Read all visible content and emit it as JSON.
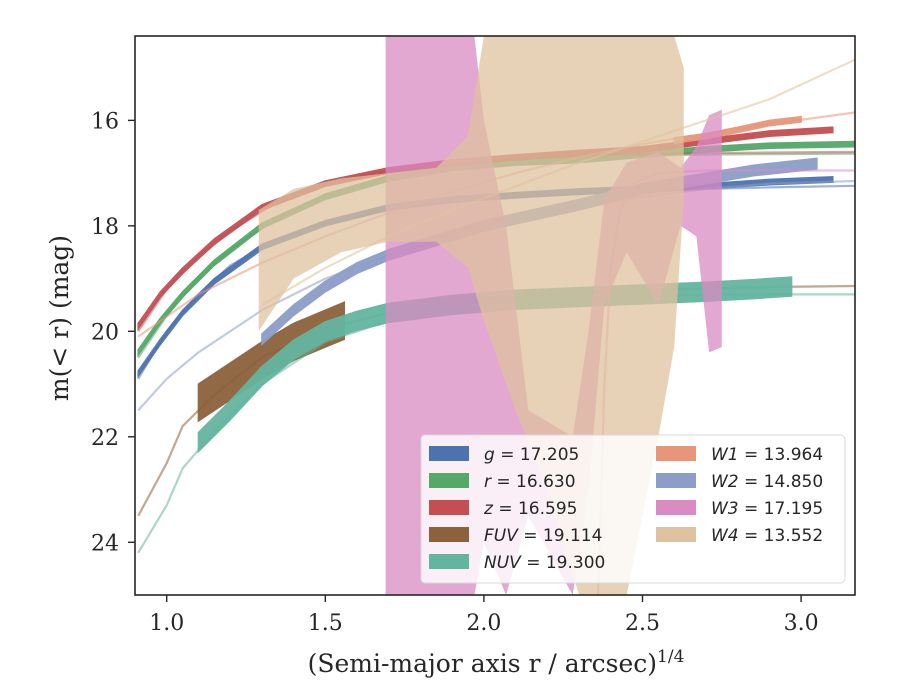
{
  "chart_data": {
    "type": "line",
    "title": "",
    "xlabel": "(Semi-major axis r / arcsec)",
    "xlabel_superscript": "1/4",
    "ylabel": "m(< r) (mag)",
    "xlim": [
      0.9,
      3.17
    ],
    "ylim": [
      25.0,
      14.4
    ],
    "y_inverted": true,
    "xticks": [
      1.0,
      1.5,
      2.0,
      2.5,
      3.0
    ],
    "xtick_labels": [
      "1.0",
      "1.5",
      "2.0",
      "2.5",
      "3.0"
    ],
    "yticks": [
      16,
      18,
      20,
      22,
      24
    ],
    "ytick_labels": [
      "16",
      "18",
      "20",
      "22",
      "24"
    ],
    "grid": false,
    "legend": {
      "placement": "lower-right",
      "columns": 2
    },
    "series": [
      {
        "name": "g = 17.205",
        "var": "g",
        "value": "17.205",
        "color": "#4c72b0",
        "data": [
          [
            0.91,
            20.8
          ],
          [
            0.98,
            20.2
          ],
          [
            1.05,
            19.65
          ],
          [
            1.15,
            19.05
          ],
          [
            1.3,
            18.4
          ],
          [
            1.5,
            17.95
          ],
          [
            1.7,
            17.65
          ],
          [
            1.9,
            17.5
          ],
          [
            2.1,
            17.42
          ],
          [
            2.3,
            17.35
          ],
          [
            2.5,
            17.3
          ],
          [
            2.7,
            17.25
          ],
          [
            2.9,
            17.17
          ],
          [
            3.1,
            17.12
          ]
        ],
        "halfwidth": 0.05,
        "model": [
          [
            0.91,
            20.9
          ],
          [
            1.0,
            20.0
          ],
          [
            1.1,
            19.3
          ],
          [
            1.2,
            18.75
          ],
          [
            1.35,
            18.25
          ],
          [
            1.5,
            17.95
          ],
          [
            1.7,
            17.7
          ],
          [
            1.9,
            17.55
          ],
          [
            2.1,
            17.45
          ],
          [
            2.3,
            17.4
          ],
          [
            2.5,
            17.35
          ],
          [
            2.7,
            17.3
          ],
          [
            2.9,
            17.27
          ],
          [
            3.17,
            17.24
          ]
        ]
      },
      {
        "name": "r = 16.630",
        "var": "r",
        "value": "16.630",
        "color": "#55a868",
        "data": [
          [
            0.91,
            20.4
          ],
          [
            0.98,
            19.8
          ],
          [
            1.05,
            19.3
          ],
          [
            1.15,
            18.7
          ],
          [
            1.3,
            18.0
          ],
          [
            1.5,
            17.45
          ],
          [
            1.7,
            17.1
          ],
          [
            1.9,
            16.9
          ],
          [
            2.1,
            16.8
          ],
          [
            2.3,
            16.75
          ],
          [
            2.5,
            16.65
          ],
          [
            2.7,
            16.55
          ],
          [
            2.9,
            16.48
          ],
          [
            3.17,
            16.45
          ]
        ],
        "halfwidth": 0.05,
        "model": [
          [
            0.91,
            20.5
          ],
          [
            1.0,
            19.7
          ],
          [
            1.1,
            19.0
          ],
          [
            1.2,
            18.45
          ],
          [
            1.35,
            17.85
          ],
          [
            1.5,
            17.4
          ],
          [
            1.7,
            17.05
          ],
          [
            1.9,
            16.85
          ],
          [
            2.1,
            16.75
          ],
          [
            2.3,
            16.7
          ],
          [
            2.5,
            16.67
          ],
          [
            2.7,
            16.65
          ],
          [
            2.9,
            16.64
          ],
          [
            3.17,
            16.63
          ]
        ]
      },
      {
        "name": "z = 16.595",
        "var": "z",
        "value": "16.595",
        "color": "#c44e52",
        "data": [
          [
            0.91,
            19.9
          ],
          [
            0.98,
            19.3
          ],
          [
            1.05,
            18.85
          ],
          [
            1.15,
            18.3
          ],
          [
            1.3,
            17.65
          ],
          [
            1.5,
            17.2
          ],
          [
            1.7,
            16.95
          ],
          [
            1.9,
            16.8
          ],
          [
            2.1,
            16.7
          ],
          [
            2.3,
            16.62
          ],
          [
            2.5,
            16.55
          ],
          [
            2.7,
            16.4
          ],
          [
            2.9,
            16.25
          ],
          [
            3.1,
            16.18
          ]
        ],
        "halfwidth": 0.05,
        "model": [
          [
            0.91,
            20.0
          ],
          [
            1.0,
            19.2
          ],
          [
            1.1,
            18.6
          ],
          [
            1.2,
            18.1
          ],
          [
            1.35,
            17.55
          ],
          [
            1.5,
            17.2
          ],
          [
            1.7,
            16.95
          ],
          [
            1.9,
            16.8
          ],
          [
            2.1,
            16.72
          ],
          [
            2.3,
            16.67
          ],
          [
            2.5,
            16.64
          ],
          [
            2.7,
            16.62
          ],
          [
            2.9,
            16.61
          ],
          [
            3.17,
            16.6
          ]
        ]
      },
      {
        "name": "FUV = 19.114",
        "var": "FUV",
        "value": "19.114",
        "color": "#8c613c",
        "data": [
          [
            1.1,
            21.35
          ],
          [
            1.2,
            20.95
          ],
          [
            1.3,
            20.55
          ],
          [
            1.4,
            20.2
          ],
          [
            1.5,
            19.95
          ],
          [
            1.56,
            19.8
          ]
        ],
        "halfwidth": 0.35,
        "model": [
          [
            0.91,
            23.5
          ],
          [
            1.0,
            22.5
          ],
          [
            1.05,
            21.8
          ],
          [
            1.15,
            21.2
          ],
          [
            1.3,
            20.5
          ],
          [
            1.5,
            19.95
          ],
          [
            1.7,
            19.65
          ],
          [
            1.9,
            19.45
          ],
          [
            2.1,
            19.35
          ],
          [
            2.3,
            19.28
          ],
          [
            2.5,
            19.22
          ],
          [
            2.7,
            19.19
          ],
          [
            2.9,
            19.16
          ],
          [
            3.17,
            19.14
          ]
        ]
      },
      {
        "name": "NUV = 19.300",
        "var": "NUV",
        "value": "19.300",
        "color": "#64b5a0",
        "data": [
          [
            1.1,
            22.1
          ],
          [
            1.2,
            21.5
          ],
          [
            1.3,
            20.85
          ],
          [
            1.4,
            20.35
          ],
          [
            1.5,
            20.0
          ],
          [
            1.6,
            19.8
          ],
          [
            1.7,
            19.65
          ],
          [
            1.9,
            19.5
          ],
          [
            2.1,
            19.4
          ],
          [
            2.3,
            19.35
          ],
          [
            2.5,
            19.3
          ],
          [
            2.7,
            19.25
          ],
          [
            2.85,
            19.2
          ],
          [
            2.97,
            19.15
          ]
        ],
        "halfwidth": 0.18,
        "model": [
          [
            0.91,
            24.2
          ],
          [
            1.0,
            23.3
          ],
          [
            1.05,
            22.6
          ],
          [
            1.15,
            21.9
          ],
          [
            1.3,
            21.0
          ],
          [
            1.5,
            20.2
          ],
          [
            1.7,
            19.8
          ],
          [
            1.9,
            19.55
          ],
          [
            2.1,
            19.42
          ],
          [
            2.3,
            19.36
          ],
          [
            2.5,
            19.33
          ],
          [
            2.7,
            19.31
          ],
          [
            2.9,
            19.3
          ],
          [
            3.17,
            19.3
          ]
        ]
      },
      {
        "name": "W1 = 13.964",
        "var": "W1",
        "value": "13.964",
        "color": "#e8967a",
        "data": [
          [
            2.6,
            16.38
          ],
          [
            2.7,
            16.3
          ],
          [
            2.8,
            16.18
          ],
          [
            2.9,
            16.05
          ],
          [
            3.0,
            15.98
          ]
        ],
        "halfwidth": 0.05,
        "model": [
          [
            0.91,
            20.1
          ],
          [
            1.1,
            19.3
          ],
          [
            1.3,
            18.7
          ],
          [
            1.5,
            18.2
          ],
          [
            1.7,
            17.75
          ],
          [
            1.9,
            17.35
          ],
          [
            2.1,
            17.0
          ],
          [
            2.3,
            16.7
          ],
          [
            2.5,
            16.45
          ],
          [
            2.7,
            16.25
          ],
          [
            2.9,
            16.07
          ],
          [
            3.17,
            15.85
          ]
        ]
      },
      {
        "name": "W2 = 14.850",
        "var": "W2",
        "value": "14.850",
        "color": "#8c9ec8",
        "data": [
          [
            1.3,
            20.15
          ],
          [
            1.4,
            19.6
          ],
          [
            1.5,
            19.15
          ],
          [
            1.6,
            18.8
          ],
          [
            1.7,
            18.55
          ],
          [
            2.0,
            18.0
          ],
          [
            2.3,
            17.6
          ],
          [
            2.5,
            17.3
          ],
          [
            2.7,
            17.1
          ],
          [
            2.85,
            16.95
          ],
          [
            3.05,
            16.82
          ]
        ],
        "halfwidth": 0.1,
        "model": [
          [
            0.91,
            21.5
          ],
          [
            1.0,
            20.9
          ],
          [
            1.1,
            20.4
          ],
          [
            1.3,
            19.6
          ],
          [
            1.5,
            19.0
          ],
          [
            1.7,
            18.55
          ],
          [
            1.9,
            18.2
          ],
          [
            2.1,
            17.9
          ],
          [
            2.3,
            17.65
          ],
          [
            2.5,
            17.45
          ],
          [
            2.7,
            17.3
          ],
          [
            2.9,
            17.2
          ],
          [
            3.17,
            17.15
          ]
        ]
      },
      {
        "name": "W3 = 17.195",
        "var": "W3",
        "value": "17.195",
        "color": "#da8bc3",
        "lower": [
          [
            1.69,
            25.0
          ],
          [
            1.8,
            25.0
          ],
          [
            1.9,
            25.0
          ],
          [
            1.92,
            25.0
          ],
          [
            1.97,
            25.0
          ],
          [
            2.0,
            24.0
          ],
          [
            2.07,
            25.0
          ],
          [
            2.14,
            23.5
          ],
          [
            2.28,
            25.0
          ],
          [
            2.33,
            23.0
          ],
          [
            2.38,
            19.5
          ],
          [
            2.45,
            18.5
          ],
          [
            2.55,
            19.5
          ],
          [
            2.62,
            18.0
          ],
          [
            2.67,
            18.2
          ],
          [
            2.71,
            20.4
          ],
          [
            2.75,
            20.3
          ]
        ],
        "upper": [
          [
            1.69,
            14.4
          ],
          [
            1.8,
            14.4
          ],
          [
            1.9,
            14.4
          ],
          [
            1.92,
            14.4
          ],
          [
            1.94,
            14.4
          ],
          [
            1.97,
            14.4
          ],
          [
            2.0,
            16.0
          ],
          [
            2.07,
            18.0
          ],
          [
            2.14,
            21.5
          ],
          [
            2.28,
            22.0
          ],
          [
            2.33,
            20.0
          ],
          [
            2.38,
            17.5
          ],
          [
            2.45,
            16.8
          ],
          [
            2.55,
            16.6
          ],
          [
            2.62,
            16.9
          ],
          [
            2.67,
            16.5
          ],
          [
            2.71,
            15.9
          ],
          [
            2.75,
            15.8
          ]
        ],
        "model": [
          [
            2.36,
            25.0
          ],
          [
            2.38,
            21.0
          ],
          [
            2.4,
            18.8
          ],
          [
            2.43,
            17.7
          ],
          [
            2.47,
            17.2
          ],
          [
            2.55,
            17.0
          ],
          [
            2.7,
            16.95
          ],
          [
            2.9,
            16.95
          ],
          [
            3.17,
            16.95
          ]
        ]
      },
      {
        "name": "W4 = 13.552",
        "var": "W4",
        "value": "13.552",
        "color": "#dfc29f",
        "lower": [
          [
            1.29,
            20.0
          ],
          [
            1.4,
            19.0
          ],
          [
            1.55,
            18.5
          ],
          [
            1.7,
            18.3
          ],
          [
            1.85,
            18.3
          ],
          [
            1.95,
            18.8
          ],
          [
            2.0,
            19.8
          ],
          [
            2.1,
            21.5
          ],
          [
            2.2,
            23.0
          ],
          [
            2.3,
            25.0
          ],
          [
            2.45,
            25.0
          ],
          [
            2.55,
            22.0
          ],
          [
            2.6,
            20.3
          ],
          [
            2.63,
            17.5
          ]
        ],
        "upper": [
          [
            1.29,
            17.7
          ],
          [
            1.4,
            17.3
          ],
          [
            1.55,
            17.1
          ],
          [
            1.7,
            17.0
          ],
          [
            1.85,
            16.9
          ],
          [
            1.95,
            16.3
          ],
          [
            2.0,
            14.4
          ],
          [
            2.1,
            14.4
          ],
          [
            2.2,
            14.4
          ],
          [
            2.3,
            14.4
          ],
          [
            2.45,
            14.4
          ],
          [
            2.55,
            14.4
          ],
          [
            2.6,
            14.4
          ],
          [
            2.63,
            15.0
          ]
        ],
        "model": [
          [
            1.3,
            19.5
          ],
          [
            1.5,
            18.8
          ],
          [
            1.7,
            18.2
          ],
          [
            1.9,
            17.7
          ],
          [
            2.1,
            17.25
          ],
          [
            2.3,
            16.8
          ],
          [
            2.5,
            16.4
          ],
          [
            2.7,
            16.0
          ],
          [
            2.9,
            15.6
          ],
          [
            3.17,
            14.85
          ]
        ]
      }
    ]
  }
}
